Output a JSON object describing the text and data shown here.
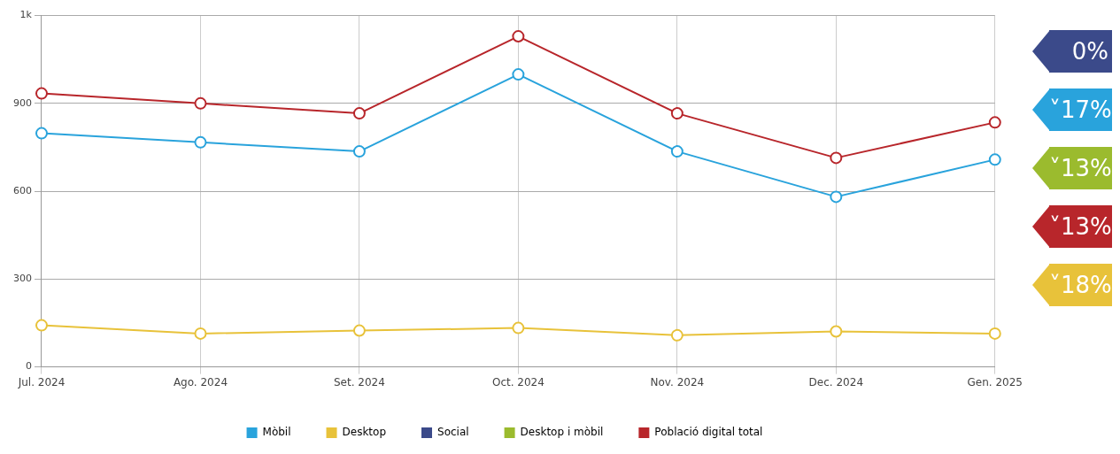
{
  "chart_data": {
    "type": "line",
    "categories": [
      "Jul. 2024",
      "Ago. 2024",
      "Set. 2024",
      "Oct. 2024",
      "Nov. 2024",
      "Dec. 2024",
      "Gen. 2025"
    ],
    "series": [
      {
        "name": "Mòbil",
        "color": "#29a3dc",
        "values": [
          798,
          767,
          736,
          999,
          736,
          581,
          708
        ]
      },
      {
        "name": "Desktop",
        "color": "#e8c23a",
        "values": [
          142,
          114,
          124,
          133,
          108,
          121,
          114
        ]
      },
      {
        "name": "Social",
        "color": "#3b4a8a",
        "values": [
          null,
          null,
          null,
          null,
          null,
          null,
          null
        ]
      },
      {
        "name": "Desktop i mòbil",
        "color": "#9bbb2e",
        "values": [
          null,
          null,
          null,
          null,
          null,
          null,
          null
        ]
      },
      {
        "name": "Població digital total",
        "color": "#b8262b",
        "values": [
          934,
          900,
          866,
          1129,
          866,
          714,
          835
        ]
      }
    ],
    "ylim": [
      0,
      1200
    ],
    "yticks": [
      0,
      300,
      600,
      900,
      {
        "value": 1200,
        "label": "1k"
      }
    ],
    "grid": true,
    "legend": "bottom",
    "marker": "circle",
    "line_style": "solid",
    "annotations": [
      "0%",
      "˅17%",
      "˅13%",
      "˅13%",
      "˅18%"
    ]
  }
}
